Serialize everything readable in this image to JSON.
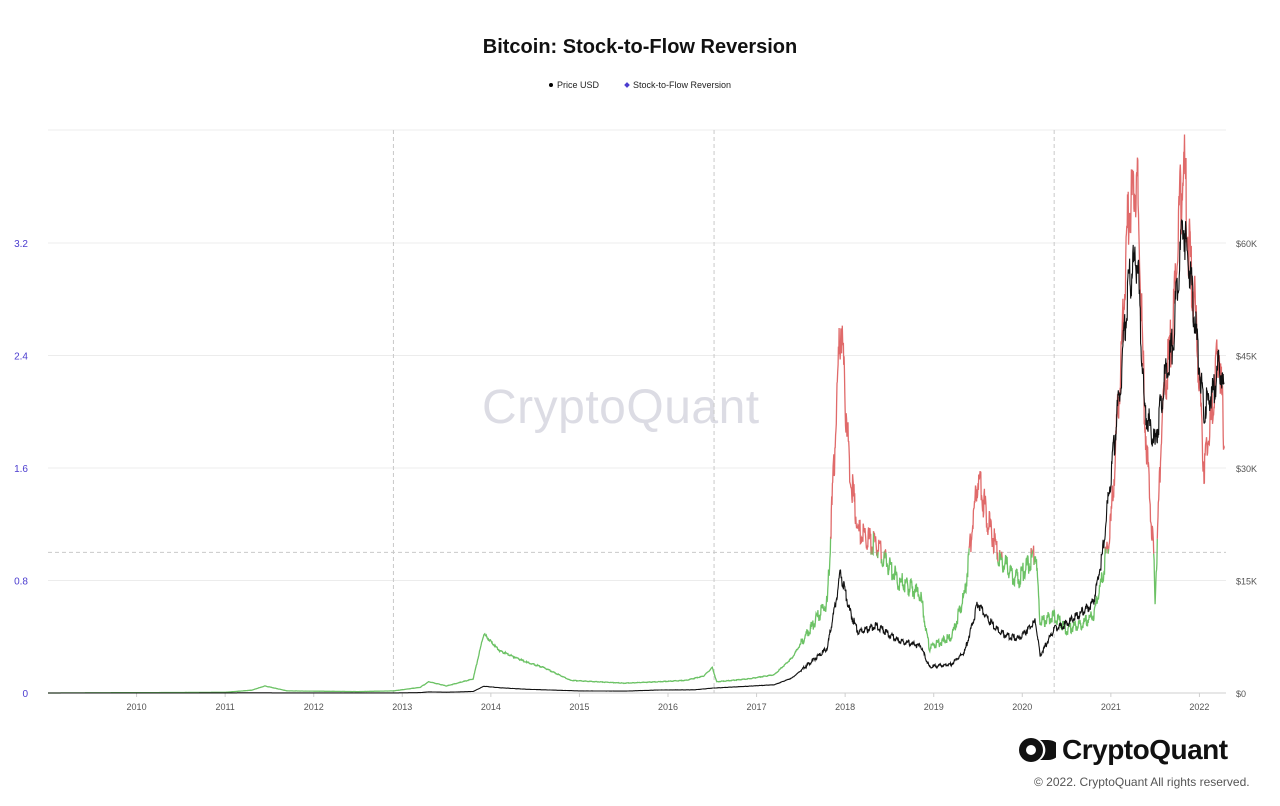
{
  "brand": {
    "name": "CryptoQuant",
    "watermark": "CryptoQuant",
    "copyright": "© 2022. CryptoQuant All rights reserved."
  },
  "colors": {
    "price": "#111111",
    "s2f_below": "#6cc265",
    "s2f_above": "#e06a6a",
    "left_axis": "#4b3ccf",
    "right_axis": "#555555",
    "grid": "#ececec",
    "guide": "#c9c9c9"
  },
  "chart_data": {
    "type": "line",
    "title": "Bitcoin: Stock-to-Flow Reversion",
    "legend": [
      "Price USD",
      "Stock-to-Flow Reversion"
    ],
    "legend_position": "top-center",
    "x_ticks": [
      "2010",
      "2011",
      "2012",
      "2013",
      "2014",
      "2015",
      "2016",
      "2017",
      "2018",
      "2019",
      "2020",
      "2021",
      "2022"
    ],
    "x_range": [
      2009.0,
      2022.3
    ],
    "y_left": {
      "ticks": [
        "0",
        "0.8",
        "1.6",
        "2.4",
        "3.2"
      ],
      "range": [
        0,
        3.2
      ],
      "label": ""
    },
    "y_right": {
      "ticks": [
        "$0",
        "$15K",
        "$30K",
        "$45K",
        "$60K"
      ],
      "range": [
        0,
        60000
      ],
      "label": ""
    },
    "threshold": 1.0,
    "halving_lines": [
      2012.9,
      2016.52,
      2020.36
    ],
    "series": [
      {
        "name": "Price USD",
        "axis": "right",
        "points": [
          [
            2009.0,
            0
          ],
          [
            2010.5,
            0.1
          ],
          [
            2011.45,
            30
          ],
          [
            2011.6,
            10
          ],
          [
            2012.5,
            8
          ],
          [
            2012.9,
            12
          ],
          [
            2013.2,
            50
          ],
          [
            2013.3,
            150
          ],
          [
            2013.5,
            100
          ],
          [
            2013.8,
            200
          ],
          [
            2013.92,
            900
          ],
          [
            2014.1,
            700
          ],
          [
            2014.4,
            500
          ],
          [
            2014.8,
            350
          ],
          [
            2015.0,
            280
          ],
          [
            2015.5,
            250
          ],
          [
            2015.9,
            400
          ],
          [
            2016.3,
            430
          ],
          [
            2016.5,
            650
          ],
          [
            2016.9,
            900
          ],
          [
            2017.2,
            1100
          ],
          [
            2017.4,
            2000
          ],
          [
            2017.6,
            4000
          ],
          [
            2017.8,
            6000
          ],
          [
            2017.95,
            16000
          ],
          [
            2018.05,
            11000
          ],
          [
            2018.15,
            8000
          ],
          [
            2018.35,
            9000
          ],
          [
            2018.6,
            7000
          ],
          [
            2018.85,
            6300
          ],
          [
            2018.95,
            3500
          ],
          [
            2019.2,
            3800
          ],
          [
            2019.35,
            5500
          ],
          [
            2019.5,
            12000
          ],
          [
            2019.6,
            10000
          ],
          [
            2019.75,
            8000
          ],
          [
            2019.95,
            7200
          ],
          [
            2020.15,
            9500
          ],
          [
            2020.2,
            5000
          ],
          [
            2020.36,
            8500
          ],
          [
            2020.5,
            9300
          ],
          [
            2020.7,
            11000
          ],
          [
            2020.8,
            12000
          ],
          [
            2020.9,
            18000
          ],
          [
            2021.0,
            29000
          ],
          [
            2021.1,
            40000
          ],
          [
            2021.2,
            55000
          ],
          [
            2021.3,
            58000
          ],
          [
            2021.38,
            38000
          ],
          [
            2021.5,
            33000
          ],
          [
            2021.58,
            40000
          ],
          [
            2021.7,
            47000
          ],
          [
            2021.82,
            63000
          ],
          [
            2021.9,
            55000
          ],
          [
            2021.97,
            47000
          ],
          [
            2022.05,
            38000
          ],
          [
            2022.15,
            40000
          ],
          [
            2022.22,
            44000
          ],
          [
            2022.28,
            40000
          ]
        ]
      },
      {
        "name": "Stock-to-Flow Reversion",
        "axis": "left",
        "points": [
          [
            2009.0,
            0.0
          ],
          [
            2011.0,
            0.005
          ],
          [
            2011.3,
            0.02
          ],
          [
            2011.45,
            0.05
          ],
          [
            2011.7,
            0.015
          ],
          [
            2012.5,
            0.01
          ],
          [
            2012.9,
            0.015
          ],
          [
            2013.2,
            0.04
          ],
          [
            2013.3,
            0.08
          ],
          [
            2013.5,
            0.05
          ],
          [
            2013.8,
            0.1
          ],
          [
            2013.92,
            0.42
          ],
          [
            2014.1,
            0.3
          ],
          [
            2014.4,
            0.22
          ],
          [
            2014.6,
            0.18
          ],
          [
            2014.9,
            0.09
          ],
          [
            2015.5,
            0.07
          ],
          [
            2015.9,
            0.08
          ],
          [
            2016.2,
            0.09
          ],
          [
            2016.4,
            0.12
          ],
          [
            2016.5,
            0.18
          ],
          [
            2016.55,
            0.08
          ],
          [
            2016.9,
            0.1
          ],
          [
            2017.2,
            0.13
          ],
          [
            2017.4,
            0.25
          ],
          [
            2017.6,
            0.45
          ],
          [
            2017.8,
            0.65
          ],
          [
            2017.95,
            2.63
          ],
          [
            2018.05,
            1.6
          ],
          [
            2018.15,
            1.15
          ],
          [
            2018.35,
            1.05
          ],
          [
            2018.6,
            0.8
          ],
          [
            2018.85,
            0.7
          ],
          [
            2018.95,
            0.32
          ],
          [
            2019.2,
            0.4
          ],
          [
            2019.35,
            0.7
          ],
          [
            2019.5,
            1.55
          ],
          [
            2019.6,
            1.25
          ],
          [
            2019.75,
            0.95
          ],
          [
            2019.95,
            0.8
          ],
          [
            2020.15,
            1.0
          ],
          [
            2020.2,
            0.5
          ],
          [
            2020.36,
            0.55
          ],
          [
            2020.5,
            0.45
          ],
          [
            2020.7,
            0.5
          ],
          [
            2020.8,
            0.55
          ],
          [
            2020.9,
            0.8
          ],
          [
            2021.0,
            1.2
          ],
          [
            2021.1,
            2.2
          ],
          [
            2021.2,
            3.4
          ],
          [
            2021.3,
            3.6
          ],
          [
            2021.38,
            2.0
          ],
          [
            2021.48,
            1.0
          ],
          [
            2021.5,
            0.68
          ],
          [
            2021.58,
            2.0
          ],
          [
            2021.7,
            2.6
          ],
          [
            2021.82,
            3.82
          ],
          [
            2021.9,
            3.0
          ],
          [
            2021.97,
            2.6
          ],
          [
            2022.05,
            1.6
          ],
          [
            2022.15,
            2.0
          ],
          [
            2022.22,
            2.5
          ],
          [
            2022.28,
            1.8
          ]
        ]
      }
    ]
  }
}
